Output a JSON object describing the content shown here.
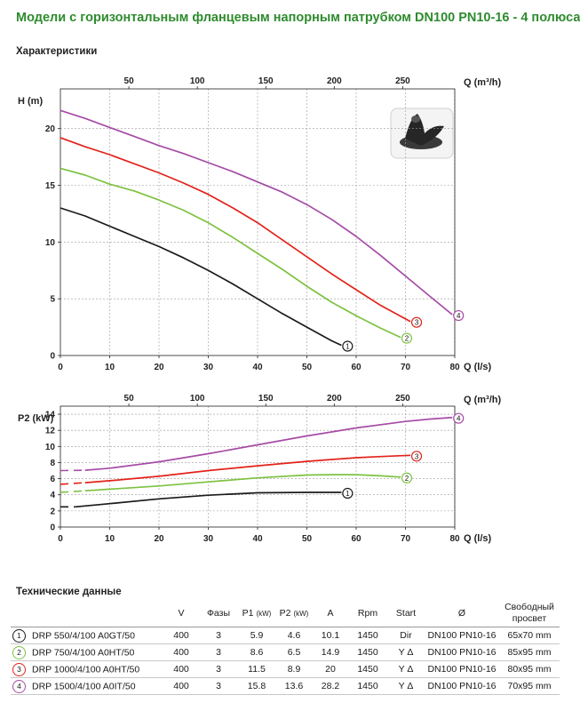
{
  "title": "Модели с горизонтальным фланцевым напорным патрубком DN100 PN10-16 - 4 полюса",
  "section_characteristics": "Характеристики",
  "section_tech": "Технические данные",
  "colors": {
    "1": "#1a1a1a",
    "2": "#7dc241",
    "3": "#e2231a",
    "4": "#a64ca6",
    "axis": "#000000",
    "grid": "#9a9a9a"
  },
  "chart_data": [
    {
      "type": "line",
      "name": "head-curves",
      "ylabel": "H (m)",
      "xlabel": "Q (l/s)",
      "x2label": "Q (m³/h)",
      "xlim": [
        0,
        80
      ],
      "ylim": [
        0,
        23.5
      ],
      "x_ticks": [
        0,
        10,
        20,
        30,
        40,
        50,
        60,
        70,
        80
      ],
      "x2_ticks": [
        50,
        100,
        150,
        200,
        250
      ],
      "y_ticks": [
        0,
        5,
        10,
        15,
        20
      ],
      "series": [
        {
          "id": "1",
          "color": "#1a1a1a",
          "dash_until": 2.5,
          "x": [
            0,
            5,
            10,
            15,
            20,
            25,
            30,
            35,
            40,
            45,
            50,
            55,
            57
          ],
          "y": [
            13,
            12.3,
            11.4,
            10.5,
            9.6,
            8.6,
            7.5,
            6.3,
            5.0,
            3.7,
            2.5,
            1.3,
            0.9
          ]
        },
        {
          "id": "2",
          "color": "#7dc241",
          "dash_until": 4,
          "x": [
            0,
            5,
            10,
            15,
            20,
            25,
            30,
            35,
            40,
            45,
            50,
            55,
            60,
            65,
            69
          ],
          "y": [
            16.5,
            15.9,
            15.1,
            14.5,
            13.7,
            12.8,
            11.7,
            10.4,
            9.0,
            7.6,
            6.1,
            4.7,
            3.5,
            2.4,
            1.6
          ]
        },
        {
          "id": "3",
          "color": "#e2231a",
          "dash_until": 4,
          "x": [
            0,
            5,
            10,
            15,
            20,
            25,
            30,
            35,
            40,
            45,
            50,
            55,
            60,
            65,
            71
          ],
          "y": [
            19.2,
            18.4,
            17.7,
            16.9,
            16.1,
            15.2,
            14.2,
            13.0,
            11.7,
            10.2,
            8.7,
            7.2,
            5.8,
            4.4,
            3.0
          ]
        },
        {
          "id": "4",
          "color": "#a64ca6",
          "dash_until": 4,
          "x": [
            0,
            5,
            10,
            15,
            20,
            25,
            30,
            35,
            40,
            45,
            50,
            55,
            60,
            65,
            70,
            75,
            79.5
          ],
          "y": [
            21.6,
            20.9,
            20.1,
            19.3,
            18.5,
            17.8,
            17.0,
            16.2,
            15.3,
            14.4,
            13.3,
            12.0,
            10.5,
            8.8,
            7.0,
            5.2,
            3.6
          ]
        }
      ]
    },
    {
      "type": "line",
      "name": "power-curves",
      "ylabel": "P2 (kW)",
      "xlabel": "Q (l/s)",
      "x2label": "Q (m³/h)",
      "xlim": [
        0,
        80
      ],
      "ylim": [
        0,
        15
      ],
      "x_ticks": [
        0,
        10,
        20,
        30,
        40,
        50,
        60,
        70,
        80
      ],
      "x2_ticks": [
        50,
        100,
        150,
        200,
        250
      ],
      "y_ticks": [
        0,
        2,
        4,
        6,
        8,
        10,
        12,
        14
      ],
      "series": [
        {
          "id": "1",
          "color": "#1a1a1a",
          "dash_until": 3,
          "x": [
            0,
            3,
            10,
            20,
            30,
            40,
            50,
            57
          ],
          "y": [
            2.5,
            2.5,
            2.9,
            3.5,
            3.95,
            4.25,
            4.3,
            4.3
          ]
        },
        {
          "id": "2",
          "color": "#7dc241",
          "dash_until": 5,
          "x": [
            0,
            5,
            10,
            20,
            30,
            40,
            50,
            55,
            60,
            65,
            69
          ],
          "y": [
            4.3,
            4.5,
            4.7,
            5.1,
            5.6,
            6.1,
            6.45,
            6.5,
            6.5,
            6.35,
            6.2
          ]
        },
        {
          "id": "3",
          "color": "#e2231a",
          "dash_until": 5,
          "x": [
            0,
            5,
            10,
            20,
            30,
            40,
            50,
            60,
            65,
            71
          ],
          "y": [
            5.3,
            5.5,
            5.75,
            6.3,
            7.0,
            7.6,
            8.15,
            8.6,
            8.75,
            8.9
          ]
        },
        {
          "id": "4",
          "color": "#a64ca6",
          "dash_until": 5,
          "x": [
            0,
            5,
            10,
            20,
            30,
            40,
            50,
            60,
            70,
            75,
            79.5
          ],
          "y": [
            7.0,
            7.05,
            7.3,
            8.1,
            9.1,
            10.2,
            11.3,
            12.3,
            13.1,
            13.4,
            13.6
          ]
        }
      ]
    }
  ],
  "table": {
    "headers": {
      "v": "V",
      "phase": "Фазы",
      "p1": "P1",
      "p1_unit": "(kW)",
      "p2": "P2",
      "p2_unit": "(kW)",
      "a": "A",
      "rpm": "Rpm",
      "start": "Start",
      "dia": "Ø",
      "passage_1": "Свободный",
      "passage_2": "просвет"
    },
    "rows": [
      {
        "num": "1",
        "model": "DRP 550/4/100 A0GT/50",
        "v": "400",
        "phase": "3",
        "p1": "5.9",
        "p2": "4.6",
        "a": "10.1",
        "rpm": "1450",
        "start": "Dir",
        "dia": "DN100 PN10-16",
        "passage": "65x70 mm"
      },
      {
        "num": "2",
        "model": "DRP 750/4/100 A0HT/50",
        "v": "400",
        "phase": "3",
        "p1": "8.6",
        "p2": "6.5",
        "a": "14.9",
        "rpm": "1450",
        "start": "Y Δ",
        "dia": "DN100 PN10-16",
        "passage": "85x95 mm"
      },
      {
        "num": "3",
        "model": "DRP 1000/4/100 A0HT/50",
        "v": "400",
        "phase": "3",
        "p1": "11.5",
        "p2": "8.9",
        "a": "20",
        "rpm": "1450",
        "start": "Y Δ",
        "dia": "DN100 PN10-16",
        "passage": "80x95 mm"
      },
      {
        "num": "4",
        "model": "DRP 1500/4/100 A0IT/50",
        "v": "400",
        "phase": "3",
        "p1": "15.8",
        "p2": "13.6",
        "a": "28.2",
        "rpm": "1450",
        "start": "Y Δ",
        "dia": "DN100 PN10-16",
        "passage": "70x95 mm"
      }
    ]
  }
}
